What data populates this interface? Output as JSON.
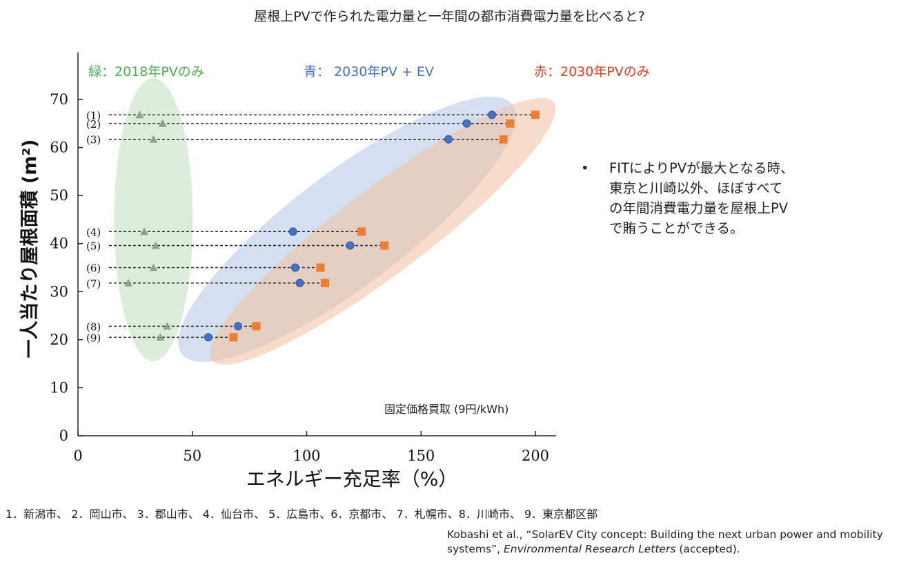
{
  "page_title": "屋根上PVで作られた電力量と一年間の都市消費電力量を比べると?",
  "bullet_note": {
    "bullet": "•",
    "text": "FITによりPVが最大となる時、東京と川崎以外、ほぼすべての年間消費電力量を屋根上PVで賄うことができる。"
  },
  "city_list": "1．新潟市、 2．岡山市、 3．郡山市、 4．仙台市、 5．広島市、6．京都市、 7．札幌市、8．川崎市、 9．東京都区部",
  "citation": {
    "part1": "Kobashi et al., “SolarEV City concept: Building the next urban power and mobility systems”, ",
    "journal": "Environmental Research Letters",
    "part2": " (accepted)."
  },
  "chart_data": {
    "type": "scatter",
    "xlabel": "エネルギー充足率（%）",
    "ylabel": "一人当たり屋根面積 (m²)",
    "xlim": [
      0,
      210
    ],
    "ylim": [
      0,
      77
    ],
    "x_ticks": [
      0,
      50,
      100,
      150,
      200
    ],
    "y_ticks": [
      0,
      10,
      20,
      30,
      40,
      50,
      60,
      70
    ],
    "grid": false,
    "annotation": "固定価格買取 (9円/kWh)",
    "city_tags": [
      "(1)",
      "(2)",
      "(3)",
      "(4)",
      "(5)",
      "(6)",
      "(7)",
      "(8)",
      "(9)"
    ],
    "city_y": [
      66.8,
      65.0,
      61.7,
      42.5,
      39.6,
      35.0,
      31.8,
      22.8,
      20.5
    ],
    "series": [
      {
        "name": "緑：2018年PVのみ",
        "color": "#4caf50",
        "marker": "triangle",
        "x": [
          27,
          37,
          33,
          29,
          34,
          33,
          22,
          39,
          36
        ],
        "y": [
          66.8,
          65.0,
          61.7,
          42.5,
          39.6,
          35.0,
          31.8,
          22.8,
          20.5
        ]
      },
      {
        "name": "青： 2030年PV + EV",
        "color": "#4472c4",
        "marker": "circle",
        "x": [
          181,
          170,
          162,
          94,
          119,
          95,
          97,
          70,
          57
        ],
        "y": [
          66.8,
          65.0,
          61.7,
          42.5,
          39.6,
          35.0,
          31.8,
          22.8,
          20.5
        ]
      },
      {
        "name": "赤：2030年PVのみ",
        "color": "#ed7d31",
        "marker": "square",
        "x": [
          200,
          189,
          186,
          124,
          134,
          106,
          108,
          78,
          68
        ],
        "y": [
          66.8,
          65.0,
          61.7,
          42.5,
          39.6,
          35.0,
          31.8,
          22.8,
          20.5
        ]
      }
    ],
    "legend_placement": "top"
  }
}
